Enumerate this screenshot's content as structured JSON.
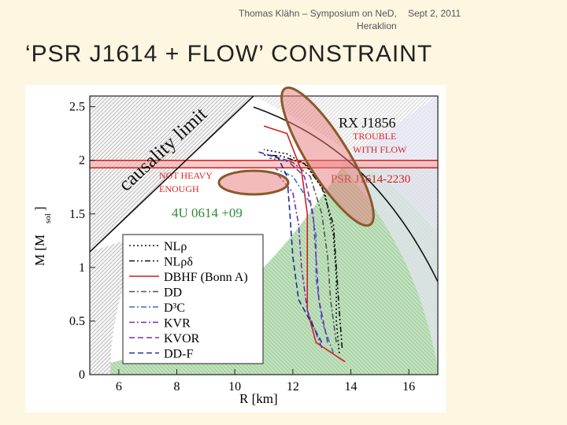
{
  "header": {
    "author_event": "Thomas Klähn – Symposium on NeD,",
    "location": "Heraklion",
    "date": "Sept 2, 2011"
  },
  "slide_title": "‘PSR J1614 + FLOW’ CONSTRAINT",
  "colors": {
    "background": "#fdf6e1",
    "highlight_fill": "#e8797a",
    "highlight_stroke": "#8a5a2a",
    "annotation_text": "#d8282a",
    "allowed_region": "#b7ddb3"
  },
  "annotations": {
    "trouble_with_flow": [
      "TROUBLE",
      "WITH FLOW"
    ],
    "not_heavy_enough": [
      "NOT HEAVY",
      "ENOUGH"
    ]
  },
  "chart_data": {
    "type": "line",
    "xlabel": "R [km]",
    "ylabel": "M [M",
    "ylabel_sub": "sol",
    "ylabel_close": "]",
    "xlim": [
      5,
      17
    ],
    "ylim": [
      0,
      2.6
    ],
    "xticks": [
      "6",
      "8",
      "10",
      "12",
      "14",
      "16"
    ],
    "yticks": [
      "0",
      "0.5",
      "1",
      "1.5",
      "2",
      "2.5"
    ],
    "region_labels": {
      "causality": "causality limit",
      "rx": "RX J1856",
      "psr": "PSR J1614-2230",
      "fourU": "4U 0614 +09"
    },
    "psr_band": [
      1.93,
      2.0
    ],
    "series": [
      {
        "name": "NLρ",
        "style": "dotted",
        "color": "#111111",
        "points": [
          [
            13.6,
            0.2
          ],
          [
            13.5,
            0.5
          ],
          [
            13.5,
            0.9
          ],
          [
            13.4,
            1.3
          ],
          [
            13.1,
            1.7
          ],
          [
            12.5,
            1.95
          ],
          [
            11.8,
            2.06
          ],
          [
            11.0,
            2.1
          ]
        ]
      },
      {
        "name": "NLρδ",
        "style": "dashdotdot",
        "color": "#111111",
        "points": [
          [
            13.7,
            0.25
          ],
          [
            13.6,
            0.6
          ],
          [
            13.5,
            1.0
          ],
          [
            13.4,
            1.4
          ],
          [
            13.0,
            1.75
          ],
          [
            12.4,
            1.97
          ],
          [
            11.6,
            2.04
          ],
          [
            11.0,
            2.05
          ]
        ]
      },
      {
        "name": "DBHF (Bonn A)",
        "style": "solid",
        "color": "#d41f1f",
        "points": [
          [
            13.8,
            0.12
          ],
          [
            12.8,
            0.3
          ],
          [
            12.5,
            0.6
          ],
          [
            12.5,
            1.0
          ],
          [
            12.5,
            1.5
          ],
          [
            12.3,
            1.9
          ],
          [
            11.8,
            2.25
          ],
          [
            11.0,
            2.32
          ]
        ]
      },
      {
        "name": "DD",
        "style": "dashdot",
        "color": "#555555",
        "points": [
          [
            13.5,
            0.3
          ],
          [
            13.3,
            0.7
          ],
          [
            13.2,
            1.1
          ],
          [
            13.0,
            1.5
          ],
          [
            12.6,
            1.85
          ],
          [
            12.0,
            1.98
          ],
          [
            11.2,
            2.02
          ]
        ]
      },
      {
        "name": "D³C",
        "style": "dashdot",
        "color": "#3b6fbf",
        "points": [
          [
            13.4,
            0.2
          ],
          [
            13.0,
            0.5
          ],
          [
            12.8,
            0.9
          ],
          [
            12.8,
            1.3
          ],
          [
            12.6,
            1.6
          ],
          [
            12.0,
            1.85
          ],
          [
            11.4,
            1.92
          ]
        ]
      },
      {
        "name": "KVR",
        "style": "dashdot",
        "color": "#7b2bb0",
        "points": [
          [
            13.0,
            0.25
          ],
          [
            12.5,
            0.6
          ],
          [
            12.3,
            1.0
          ],
          [
            12.2,
            1.4
          ],
          [
            12.0,
            1.7
          ],
          [
            11.5,
            1.86
          ],
          [
            11.0,
            1.9
          ]
        ]
      },
      {
        "name": "KVOR",
        "style": "dashed",
        "color": "#7b2bb0",
        "points": [
          [
            13.2,
            0.3
          ],
          [
            12.9,
            0.7
          ],
          [
            12.8,
            1.1
          ],
          [
            12.7,
            1.5
          ],
          [
            12.4,
            1.85
          ],
          [
            11.8,
            2.0
          ],
          [
            11.2,
            2.05
          ]
        ]
      },
      {
        "name": "DD-F",
        "style": "dashed",
        "color": "#1a2f9a",
        "points": [
          [
            13.0,
            0.3
          ],
          [
            12.2,
            0.7
          ],
          [
            12.0,
            1.1
          ],
          [
            11.9,
            1.5
          ],
          [
            11.8,
            1.85
          ],
          [
            11.5,
            2.02
          ],
          [
            10.8,
            2.08
          ]
        ]
      }
    ]
  }
}
